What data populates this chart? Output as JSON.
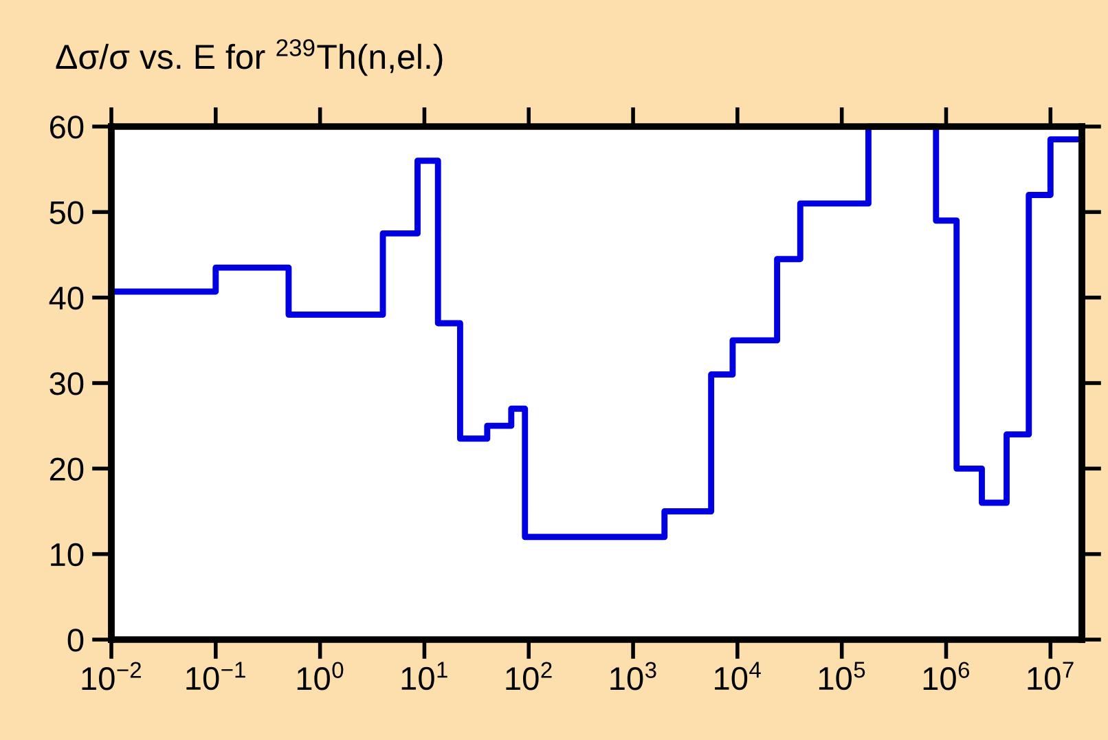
{
  "chart_data": {
    "type": "step",
    "title": "Δσ/σ vs. E for $^{239}$Th(n,el.)",
    "x": [
      0.01,
      0.01,
      0.1,
      0.5,
      4,
      8.6,
      13.5,
      22,
      40,
      68,
      92,
      2000,
      5600,
      9000,
      24000,
      40000,
      180000,
      800000,
      1260000,
      2200000,
      3800000,
      6200000,
      10000000,
      20000000,
      20000000
    ],
    "series": [
      {
        "color": "#0000e0",
        "values": [
          0,
          40.7,
          43.5,
          38,
          47.5,
          56,
          37,
          23.5,
          25,
          27,
          12,
          15,
          31,
          35,
          44.5,
          51,
          60,
          49,
          20,
          16,
          24,
          52,
          58.5,
          0,
          0
        ]
      }
    ],
    "log": "x",
    "xlim": [
      0.01,
      20000000
    ],
    "xticks": [
      {
        "value": 0.01,
        "label": "10$^{−2}$"
      },
      {
        "value": 0.1,
        "label": "10$^{−1}$"
      },
      {
        "value": 1,
        "label": "10$^{0}$"
      },
      {
        "value": 10,
        "label": "10$^{1}$"
      },
      {
        "value": 100,
        "label": "10$^{2}$"
      },
      {
        "value": 1000,
        "label": "10$^{3}$"
      },
      {
        "value": 10000,
        "label": "10$^{4}$"
      },
      {
        "value": 100000,
        "label": "10$^{5}$"
      },
      {
        "value": 1000000,
        "label": "10$^{6}$"
      },
      {
        "value": 10000000,
        "label": "10$^{7}$"
      }
    ],
    "ylim": [
      0,
      60
    ],
    "yticks": [
      0,
      10,
      20,
      30,
      40,
      50,
      60
    ],
    "grid": false,
    "legend": false,
    "line_style": "solid",
    "marker": "none"
  }
}
